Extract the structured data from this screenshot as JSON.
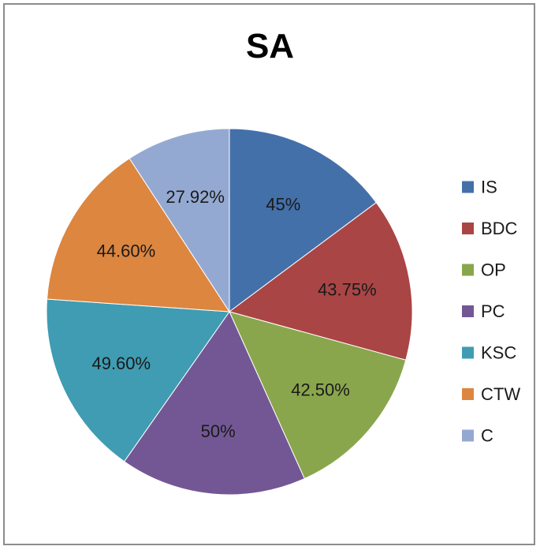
{
  "chart_data": {
    "type": "pie",
    "title": "SA",
    "categories": [
      "IS",
      "BDC",
      "OP",
      "PC",
      "KSC",
      "CTW",
      "C"
    ],
    "values": [
      45,
      43.75,
      42.5,
      50,
      49.6,
      44.6,
      27.92
    ],
    "data_labels": [
      "45%",
      "43.75%",
      "42.50%",
      "50%",
      "49.60%",
      "44.60%",
      "27.92%"
    ],
    "colors": [
      "#4470aa",
      "#aa4545",
      "#8aa64c",
      "#735795",
      "#3f9cb2",
      "#dc8640",
      "#94a9d2"
    ],
    "legend_position": "right",
    "start_angle": "12 o'clock",
    "direction": "clockwise"
  }
}
